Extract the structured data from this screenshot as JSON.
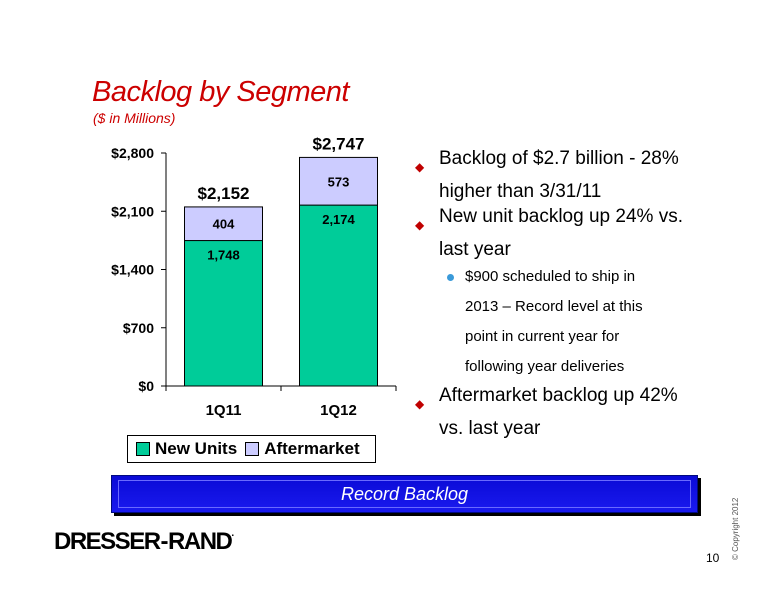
{
  "title": "Backlog by Segment",
  "subtitle": "($ in Millions)",
  "chart_data": {
    "type": "bar",
    "stacked": true,
    "categories": [
      "1Q11",
      "1Q12"
    ],
    "series": [
      {
        "name": "New Units",
        "values": [
          1748,
          2174
        ],
        "labels": [
          "1,748",
          "2,174"
        ],
        "color": "#00cc99"
      },
      {
        "name": "Aftermarket",
        "values": [
          404,
          573
        ],
        "labels": [
          "404",
          "573"
        ],
        "color": "#ccccff"
      }
    ],
    "totals": [
      "$2,152",
      "$2,747"
    ],
    "yticks": [
      "$0",
      "$700",
      "$1,400",
      "$2,100",
      "$2,800"
    ],
    "ytick_values": [
      0,
      700,
      1400,
      2100,
      2800
    ],
    "ylim": [
      0,
      2800
    ],
    "legend_position": "bottom",
    "grid": false
  },
  "bullets": {
    "b1_line1": "Backlog of $2.7 billion - 28%",
    "b1_line2": "higher than 3/31/11",
    "b2_line1": "New unit backlog up 24% vs.",
    "b2_line2": "last year",
    "sub_line1": "$900 scheduled to ship in",
    "sub_line2": "2013 – Record level at this",
    "sub_line3": "point in current year for",
    "sub_line4": "following year deliveries",
    "b3_line1": "Aftermarket backlog up 42%",
    "b3_line2": "vs. last year"
  },
  "banner": "Record Backlog",
  "logo_text": "DRESSER-RAND.",
  "copyright": "© Copyright 2012",
  "page_number": "10",
  "colors": {
    "title": "#cc0000",
    "bullet_diamond": "#c00000",
    "sub_bullet": "#3a9ad9",
    "banner": "#0a0ad6"
  }
}
